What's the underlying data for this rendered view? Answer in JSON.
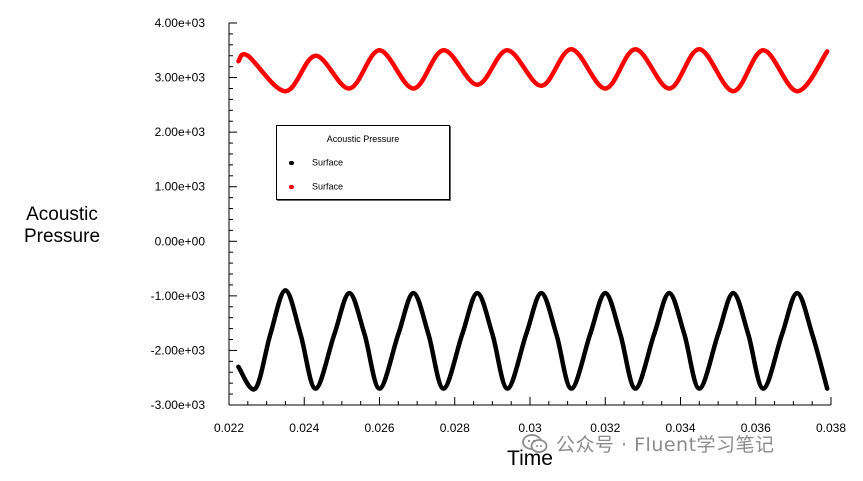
{
  "chart_data": {
    "type": "line",
    "title": "",
    "xlabel": "Time",
    "ylabel_lines": [
      "Acoustic",
      "Pressure"
    ],
    "xlim": [
      0.022,
      0.038
    ],
    "ylim": [
      -3000,
      4000
    ],
    "x_ticks": [
      "0.022",
      "0.024",
      "0.026",
      "0.028",
      "0.03",
      "0.032",
      "0.034",
      "0.036",
      "0.038"
    ],
    "y_ticks": [
      "4.00e+03",
      "3.00e+03",
      "2.00e+03",
      "1.00e+03",
      "0.00e+00",
      "-1.00e+03",
      "-2.00e+03",
      "-3.00e+03"
    ],
    "legend": {
      "title": "Acoustic Pressure",
      "entries": [
        {
          "label": "Surface",
          "color": "#000000"
        },
        {
          "label": "Surface",
          "color": "#ff0000"
        }
      ]
    },
    "series": [
      {
        "name": "Surface",
        "color": "#000000",
        "x": [
          0.02225,
          0.0227,
          0.0231,
          0.0235,
          0.0239,
          0.0243,
          0.0248,
          0.0252,
          0.0256,
          0.026,
          0.0265,
          0.0269,
          0.0273,
          0.0277,
          0.0282,
          0.0286,
          0.029,
          0.0294,
          0.0299,
          0.0303,
          0.0307,
          0.0311,
          0.0316,
          0.032,
          0.0324,
          0.0328,
          0.0333,
          0.0337,
          0.0341,
          0.0345,
          0.035,
          0.0354,
          0.0358,
          0.0362,
          0.0367,
          0.0371,
          0.0375,
          0.0379
        ],
        "y": [
          -2300,
          -2700,
          -1700,
          -900,
          -1700,
          -2700,
          -1700,
          -950,
          -1700,
          -2700,
          -1700,
          -950,
          -1700,
          -2700,
          -1700,
          -950,
          -1700,
          -2700,
          -1700,
          -950,
          -1700,
          -2700,
          -1700,
          -950,
          -1700,
          -2700,
          -1700,
          -950,
          -1700,
          -2700,
          -1700,
          -950,
          -1700,
          -2700,
          -1700,
          -950,
          -1700,
          -2700
        ]
      },
      {
        "name": "Surface",
        "color": "#ff0000",
        "x": [
          0.02225,
          0.0225,
          0.0235,
          0.0243,
          0.0252,
          0.026,
          0.0269,
          0.0277,
          0.0286,
          0.0294,
          0.0303,
          0.0311,
          0.032,
          0.0328,
          0.0337,
          0.0345,
          0.0354,
          0.0362,
          0.0371,
          0.0379
        ],
        "y": [
          3300,
          3400,
          2750,
          3400,
          2800,
          3500,
          2800,
          3500,
          2870,
          3500,
          2850,
          3520,
          2800,
          3520,
          2800,
          3520,
          2750,
          3500,
          2750,
          3480
        ]
      }
    ]
  },
  "watermark": {
    "text": "公众号 · Fluent学习笔记",
    "icon": "wechat-icon"
  }
}
